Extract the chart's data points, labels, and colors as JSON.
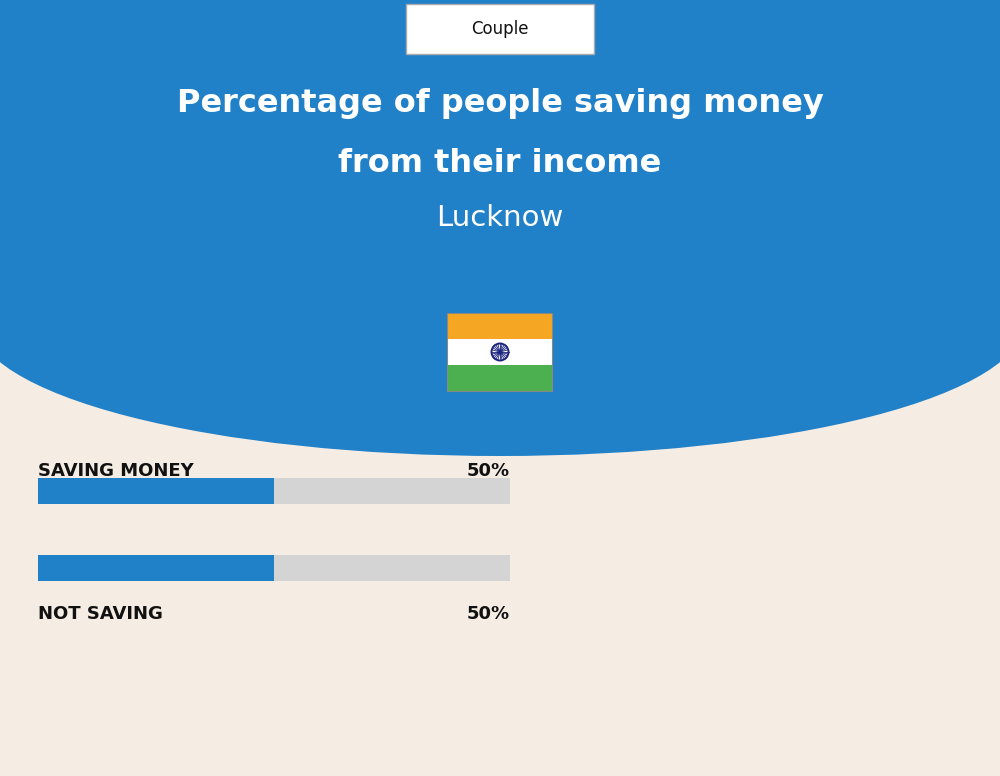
{
  "title_line1": "Percentage of people saving money",
  "title_line2": "from their income",
  "subtitle": "Lucknow",
  "category_label": "Couple",
  "bg_top_color": "#2080C8",
  "bg_bottom_color": "#F5EDE4",
  "bar_label_1": "SAVING MONEY",
  "bar_value_1": 50,
  "bar_label_2": "NOT SAVING",
  "bar_value_2": 50,
  "bar_filled_color": "#2080C8",
  "bar_empty_color": "#D4D4D4",
  "label_color": "#111111",
  "title_color": "#FFFFFF",
  "subtitle_color": "#FFFFFF",
  "flag_orange": "#F5A623",
  "flag_white": "#FFFFFF",
  "flag_green": "#4CAF50",
  "flag_navy": "#1A237E",
  "couple_box_color": "#FFFFFF",
  "couple_border_color": "#AAAAAA",
  "couple_text_color": "#111111"
}
